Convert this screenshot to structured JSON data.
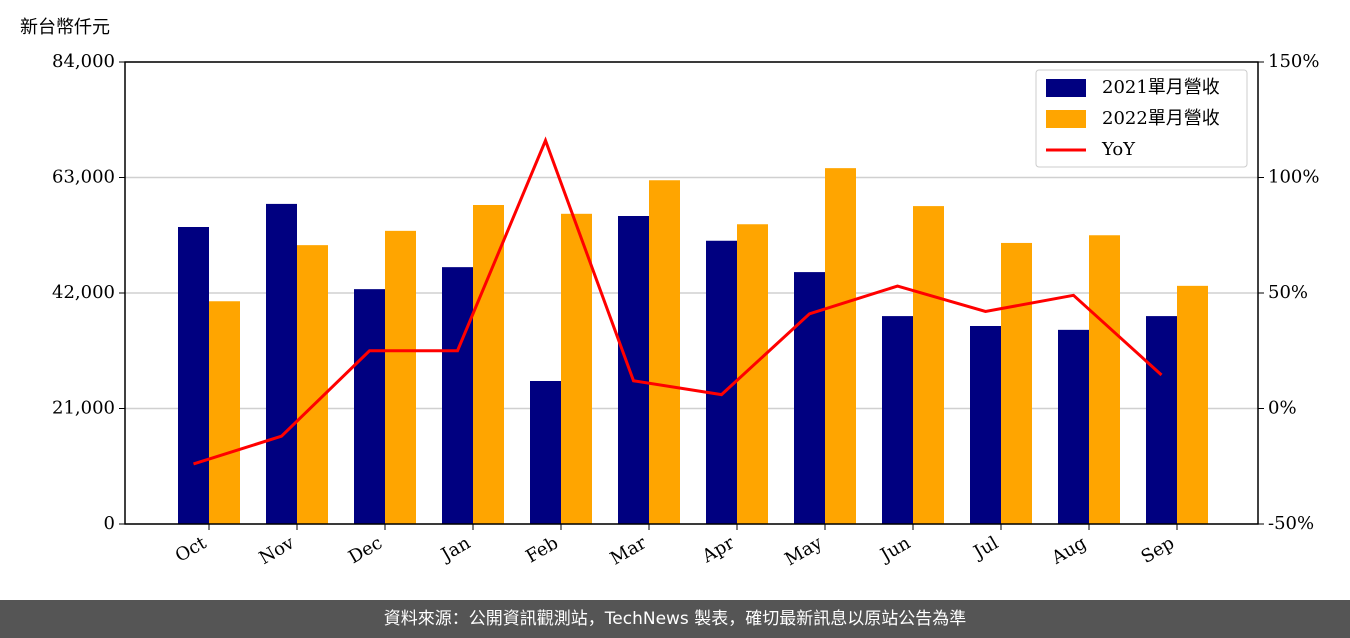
{
  "chart_data": {
    "type": "bar_line",
    "ylabel": "新台幣仟元",
    "categories": [
      "Oct",
      "Nov",
      "Dec",
      "Jan",
      "Feb",
      "Mar",
      "Apr",
      "May",
      "Jun",
      "Jul",
      "Aug",
      "Sep"
    ],
    "series": [
      {
        "name": "2021單月營收",
        "type": "bar",
        "color": "#000080",
        "values": [
          54000,
          58200,
          42700,
          46700,
          26000,
          56000,
          51500,
          45800,
          37800,
          36000,
          35300,
          37800
        ]
      },
      {
        "name": "2022單月營收",
        "type": "bar",
        "color": "#ffa500",
        "values": [
          40500,
          50700,
          53300,
          58000,
          56400,
          62500,
          54500,
          64700,
          57800,
          51100,
          52500,
          43300
        ]
      },
      {
        "name": "YoY",
        "type": "line",
        "axis": "y2",
        "color": "#ff0000",
        "values": [
          -24,
          -12,
          25,
          25,
          116,
          12,
          6,
          41,
          53,
          42,
          49,
          14.5
        ]
      }
    ],
    "ylim": [
      0,
      84000
    ],
    "yticks": [
      0,
      {
        "value": 21000,
        "label": "21,000"
      },
      {
        "value": 42000,
        "label": "42,000"
      },
      {
        "value": 63000,
        "label": "63,000"
      },
      {
        "value": 84000,
        "label": "84,000"
      }
    ],
    "y2lim": [
      -50,
      150
    ],
    "y2ticks": [
      {
        "value": -50,
        "label": "-50%"
      },
      {
        "value": 0,
        "label": "0%"
      },
      {
        "value": 50,
        "label": "50%"
      },
      {
        "value": 100,
        "label": "100%"
      },
      {
        "value": 150,
        "label": "150%"
      }
    ],
    "grid": true,
    "legend": "upper right",
    "footer": "資料來源：公開資訊觀測站，TechNews 製表，確切最新訊息以原站公告為準"
  }
}
